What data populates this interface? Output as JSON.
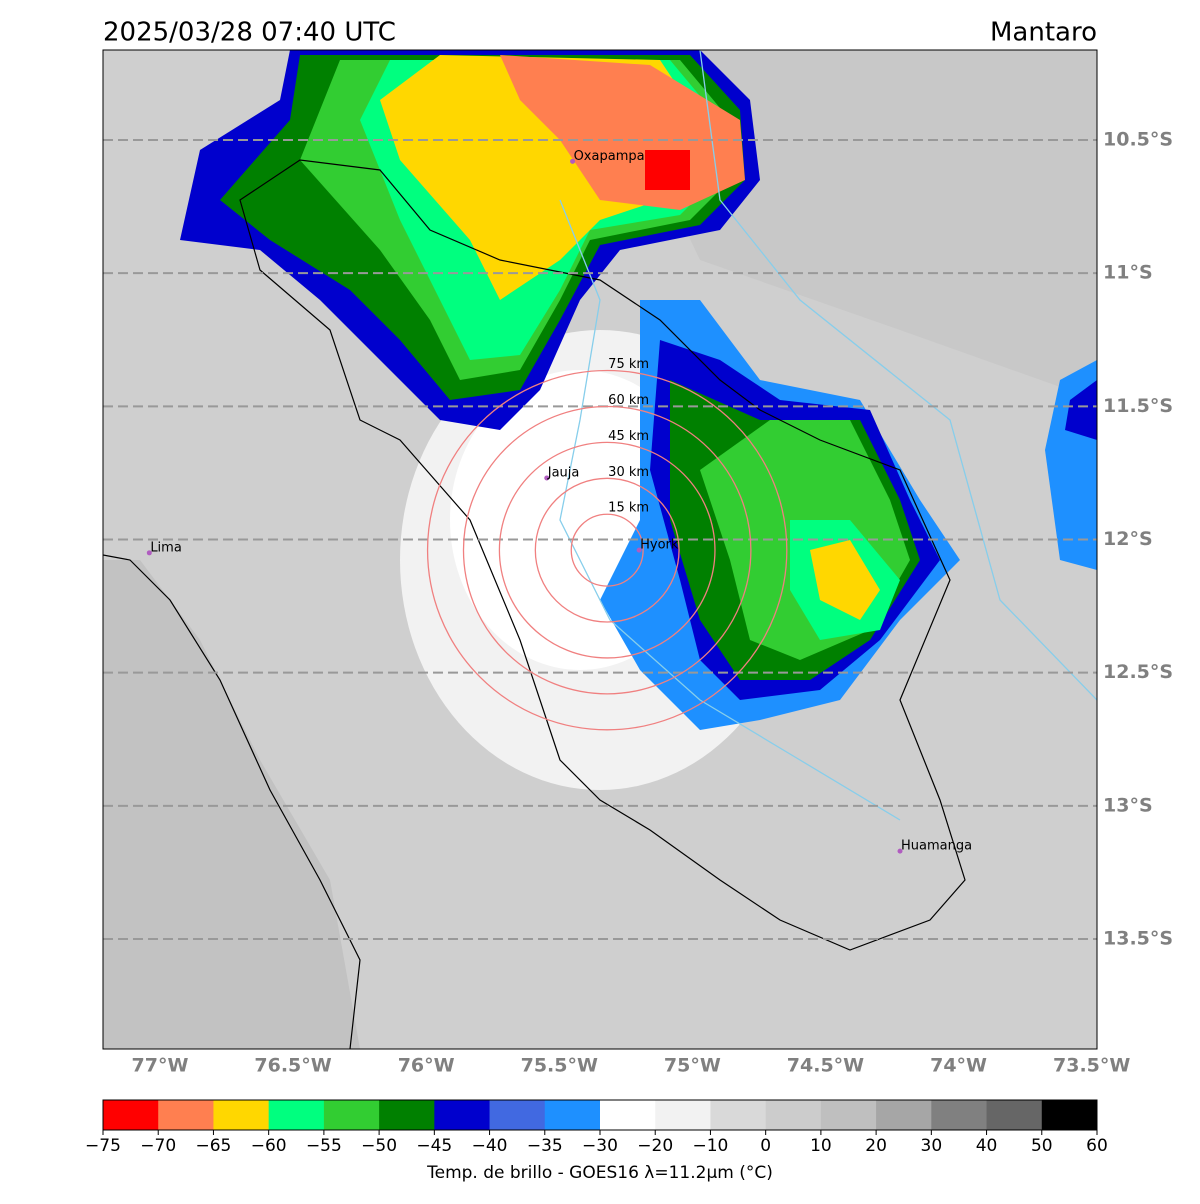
{
  "title_left": "2025/03/28 07:40 UTC",
  "title_right": "Mantaro",
  "map": {
    "xlim": [
      -77.214,
      -73.48
    ],
    "ylim": [
      -13.913,
      -10.162
    ],
    "xticks": [
      {
        "value": -77,
        "label": "77°W"
      },
      {
        "value": -76.5,
        "label": "76.5°W"
      },
      {
        "value": -76,
        "label": "76°W"
      },
      {
        "value": -75.5,
        "label": "75.5°W"
      },
      {
        "value": -75,
        "label": "75°W"
      },
      {
        "value": -74.5,
        "label": "74.5°W"
      },
      {
        "value": -74,
        "label": "74°W"
      },
      {
        "value": -73.5,
        "label": "73.5°W"
      }
    ],
    "yticks": [
      {
        "value": -10.5,
        "label": "10.5°S"
      },
      {
        "value": -11,
        "label": "11°S"
      },
      {
        "value": -11.5,
        "label": "11.5°S"
      },
      {
        "value": -12,
        "label": "12°S"
      },
      {
        "value": -12.5,
        "label": "12.5°S"
      },
      {
        "value": -13,
        "label": "13°S"
      },
      {
        "value": -13.5,
        "label": "13.5°S"
      }
    ],
    "places": [
      {
        "name": "Lima",
        "lon": -77.04,
        "lat": -12.05
      },
      {
        "name": "Jauja",
        "lon": -75.547,
        "lat": -11.769
      },
      {
        "name": "Oxapampa",
        "lon": -75.45,
        "lat": -10.58
      },
      {
        "name": "Hyork",
        "lon": -75.2,
        "lat": -12.04
      },
      {
        "name": "Huamanga",
        "lon": -74.22,
        "lat": -13.17
      }
    ],
    "rings_center": {
      "lon": -75.32,
      "lat": -12.04
    },
    "rings": [
      {
        "value": 15,
        "label": "15 km"
      },
      {
        "value": 30,
        "label": "30 km"
      },
      {
        "value": 45,
        "label": "45 km"
      },
      {
        "value": 60,
        "label": "60 km"
      },
      {
        "value": 75,
        "label": "75 km"
      }
    ]
  },
  "colorbar": {
    "label": "Temp. de brillo - GOES16 λ=11.2μm (°C)",
    "bounds": [
      {
        "value": -75,
        "label": "−75"
      },
      {
        "value": -70,
        "label": "−70"
      },
      {
        "value": -65,
        "label": "−65"
      },
      {
        "value": -60,
        "label": "−60"
      },
      {
        "value": -55,
        "label": "−55"
      },
      {
        "value": -50,
        "label": "−50"
      },
      {
        "value": -45,
        "label": "−45"
      },
      {
        "value": -40,
        "label": "−40"
      },
      {
        "value": -35,
        "label": "−35"
      },
      {
        "value": -30,
        "label": "−30"
      },
      {
        "value": -20,
        "label": "−20"
      },
      {
        "value": -10,
        "label": "−10"
      },
      0,
      10,
      20,
      30,
      40,
      50,
      60
    ],
    "colors": [
      "#ff0000",
      "#ff7f50",
      "#ffd700",
      "#00ff7f",
      "#32cd32",
      "#008000",
      "#0000cd",
      "#4169e1",
      "#1e90ff",
      "#ffffff",
      "#f2f2f2",
      "#d9d9d9",
      "#cccccc",
      "#bfbfbf",
      "#a6a6a6",
      "#808080",
      "#666666",
      "#000000"
    ]
  }
}
